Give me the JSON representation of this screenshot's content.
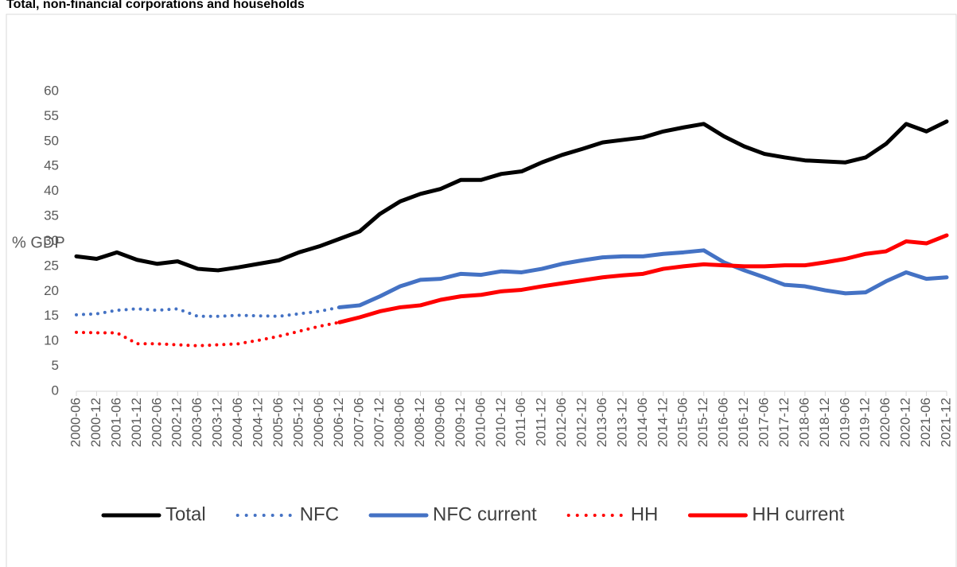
{
  "chart_data": {
    "type": "line",
    "title": "Total, non-financial corporations and households",
    "y_label": "% GDP",
    "categories": [
      "2000-06",
      "2000-12",
      "2001-06",
      "2001-12",
      "2002-06",
      "2002-12",
      "2003-06",
      "2003-12",
      "2004-06",
      "2004-12",
      "2005-06",
      "2005-12",
      "2006-06",
      "2006-12",
      "2007-06",
      "2007-12",
      "2008-06",
      "2008-12",
      "2009-06",
      "2009-12",
      "2010-06",
      "2010-12",
      "2011-06",
      "2011-12",
      "2012-06",
      "2012-12",
      "2013-06",
      "2013-12",
      "2014-06",
      "2014-12",
      "2015-06",
      "2015-12",
      "2016-06",
      "2016-12",
      "2017-06",
      "2017-12",
      "2018-06",
      "2018-12",
      "2019-06",
      "2019-12",
      "2020-06",
      "2020-12",
      "2021-06",
      "2021-12"
    ],
    "series": [
      {
        "name": "Total",
        "color": "#000000",
        "line_style": "solid",
        "values": [
          27,
          26.5,
          27.8,
          26.3,
          25.5,
          26,
          24.5,
          24.2,
          24.8,
          25.5,
          26.2,
          27.8,
          29,
          30.5,
          32,
          35.5,
          38,
          39.5,
          40.5,
          42.3,
          42.3,
          43.5,
          44,
          45.8,
          47.3,
          48.5,
          49.8,
          50.3,
          50.8,
          52,
          52.8,
          53.5,
          51,
          49,
          47.5,
          46.8,
          46.2,
          46,
          45.8,
          46.8,
          49.5,
          53.5,
          52,
          54
        ]
      },
      {
        "name": "NFC",
        "color": "#4472c4",
        "line_style": "dotted",
        "values": [
          15.3,
          15.5,
          16.2,
          16.5,
          16.2,
          16.5,
          15,
          15,
          15.2,
          15.1,
          15,
          15.5,
          16,
          16.8,
          null,
          null,
          null,
          null,
          null,
          null,
          null,
          null,
          null,
          null,
          null,
          null,
          null,
          null,
          null,
          null,
          null,
          null,
          null,
          null,
          null,
          null,
          null,
          null,
          null,
          null,
          null,
          null,
          null,
          null
        ]
      },
      {
        "name": "NFC current",
        "color": "#4472c4",
        "line_style": "solid",
        "values": [
          null,
          null,
          null,
          null,
          null,
          null,
          null,
          null,
          null,
          null,
          null,
          null,
          null,
          16.8,
          17.2,
          19,
          21,
          22.3,
          22.5,
          23.5,
          23.3,
          24,
          23.8,
          24.5,
          25.5,
          26.2,
          26.8,
          27,
          27,
          27.5,
          27.8,
          28.2,
          25.8,
          24.2,
          22.8,
          21.3,
          21,
          20.2,
          19.6,
          19.8,
          22,
          23.8,
          22.5,
          22.8
        ]
      },
      {
        "name": "HH",
        "color": "#ff0000",
        "line_style": "dotted",
        "values": [
          11.8,
          11.7,
          11.7,
          9.5,
          9.5,
          9.3,
          9.1,
          9.3,
          9.5,
          10.2,
          11,
          12,
          13,
          13.8,
          null,
          null,
          null,
          null,
          null,
          null,
          null,
          null,
          null,
          null,
          null,
          null,
          null,
          null,
          null,
          null,
          null,
          null,
          null,
          null,
          null,
          null,
          null,
          null,
          null,
          null,
          null,
          null,
          null,
          null
        ]
      },
      {
        "name": "HH current",
        "color": "#ff0000",
        "line_style": "solid",
        "values": [
          null,
          null,
          null,
          null,
          null,
          null,
          null,
          null,
          null,
          null,
          null,
          null,
          null,
          13.8,
          14.8,
          16,
          16.8,
          17.2,
          18.3,
          19,
          19.3,
          20,
          20.3,
          21,
          21.6,
          22.2,
          22.8,
          23.2,
          23.5,
          24.5,
          25,
          25.4,
          25.2,
          25,
          25,
          25.2,
          25.2,
          25.8,
          26.5,
          27.5,
          28,
          30,
          29.6,
          31.2
        ]
      }
    ],
    "ylim": [
      0,
      60
    ],
    "yticks": [
      0,
      5,
      10,
      15,
      20,
      25,
      30,
      35,
      40,
      45,
      50,
      55,
      60
    ],
    "grid": false,
    "legend": "bottom"
  }
}
